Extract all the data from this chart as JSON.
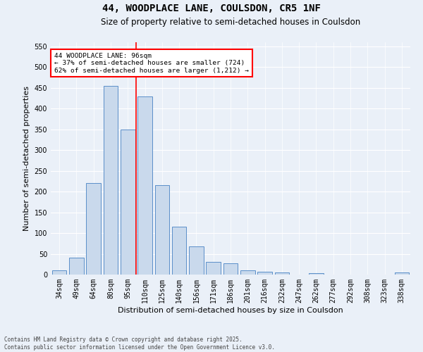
{
  "title": "44, WOODPLACE LANE, COULSDON, CR5 1NF",
  "subtitle": "Size of property relative to semi-detached houses in Coulsdon",
  "xlabel": "Distribution of semi-detached houses by size in Coulsdon",
  "ylabel": "Number of semi-detached properties",
  "bar_labels": [
    "34sqm",
    "49sqm",
    "64sqm",
    "80sqm",
    "95sqm",
    "110sqm",
    "125sqm",
    "140sqm",
    "156sqm",
    "171sqm",
    "186sqm",
    "201sqm",
    "216sqm",
    "232sqm",
    "247sqm",
    "262sqm",
    "277sqm",
    "292sqm",
    "308sqm",
    "323sqm",
    "338sqm"
  ],
  "bar_values": [
    10,
    40,
    220,
    455,
    350,
    430,
    215,
    115,
    68,
    30,
    27,
    10,
    7,
    5,
    0,
    4,
    0,
    0,
    0,
    0,
    5
  ],
  "bar_color": "#c9d9ec",
  "bar_edge_color": "#5b8fc9",
  "vline_x_index": 4,
  "vline_color": "red",
  "annotation_text": "44 WOODPLACE LANE: 96sqm\n← 37% of semi-detached houses are smaller (724)\n62% of semi-detached houses are larger (1,212) →",
  "annotation_box_color": "white",
  "annotation_box_edge_color": "red",
  "ylim": [
    0,
    560
  ],
  "yticks": [
    0,
    50,
    100,
    150,
    200,
    250,
    300,
    350,
    400,
    450,
    500,
    550
  ],
  "bg_color": "#eaf0f8",
  "footer_text": "Contains HM Land Registry data © Crown copyright and database right 2025.\nContains public sector information licensed under the Open Government Licence v3.0.",
  "title_fontsize": 10,
  "subtitle_fontsize": 8.5,
  "axis_label_fontsize": 8,
  "tick_fontsize": 7,
  "footer_fontsize": 5.5
}
